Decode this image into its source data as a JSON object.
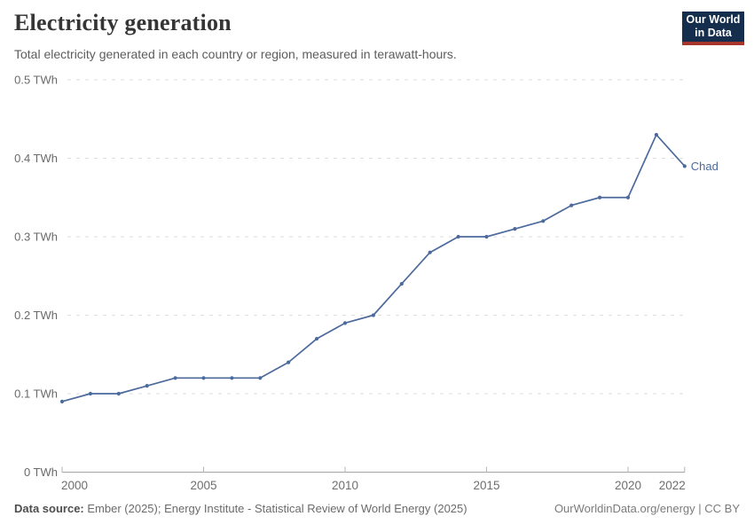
{
  "header": {
    "title": "Electricity generation",
    "subtitle": "Total electricity generated in each country or region, measured in terawatt-hours."
  },
  "logo": {
    "line1": "Our World",
    "line2": "in Data"
  },
  "chart_data": {
    "type": "line",
    "title": "Electricity generation",
    "unit": "TWh",
    "x": [
      2000,
      2001,
      2002,
      2003,
      2004,
      2005,
      2006,
      2007,
      2008,
      2009,
      2010,
      2011,
      2012,
      2013,
      2014,
      2015,
      2016,
      2017,
      2018,
      2019,
      2020,
      2021,
      2022
    ],
    "series": [
      {
        "name": "Chad",
        "color": "#4C6A9C",
        "values": [
          0.09,
          0.1,
          0.1,
          0.11,
          0.12,
          0.12,
          0.12,
          0.12,
          0.14,
          0.17,
          0.19,
          0.2,
          0.24,
          0.28,
          0.3,
          0.3,
          0.31,
          0.32,
          0.34,
          0.35,
          0.35,
          0.43,
          0.39
        ]
      }
    ],
    "ylim": [
      0,
      0.5
    ],
    "y_ticks": [
      {
        "value": 0,
        "label": "0 TWh"
      },
      {
        "value": 0.1,
        "label": "0.1 TWh"
      },
      {
        "value": 0.2,
        "label": "0.2 TWh"
      },
      {
        "value": 0.3,
        "label": "0.3 TWh"
      },
      {
        "value": 0.4,
        "label": "0.4 TWh"
      },
      {
        "value": 0.5,
        "label": "0.5 TWh"
      }
    ],
    "x_ticks": [
      {
        "value": 2000,
        "label": "2000"
      },
      {
        "value": 2005,
        "label": "2005"
      },
      {
        "value": 2010,
        "label": "2010"
      },
      {
        "value": 2015,
        "label": "2015"
      },
      {
        "value": 2020,
        "label": "2020"
      },
      {
        "value": 2022,
        "label": "2022"
      }
    ],
    "grid": "horizontal-dashed",
    "legend_position": "end-of-line-label"
  },
  "footer": {
    "source_label": "Data source:",
    "source_text": "Ember (2025); Energy Institute - Statistical Review of World Energy (2025)",
    "credit": "OurWorldinData.org/energy | CC BY"
  },
  "colors": {
    "line": "#4C6A9C",
    "logo_bg": "#152e4d",
    "logo_accent": "#a8352b",
    "grid": "#dedede",
    "axis": "#a3a3a3",
    "tick_label": "#6a6a6a"
  }
}
